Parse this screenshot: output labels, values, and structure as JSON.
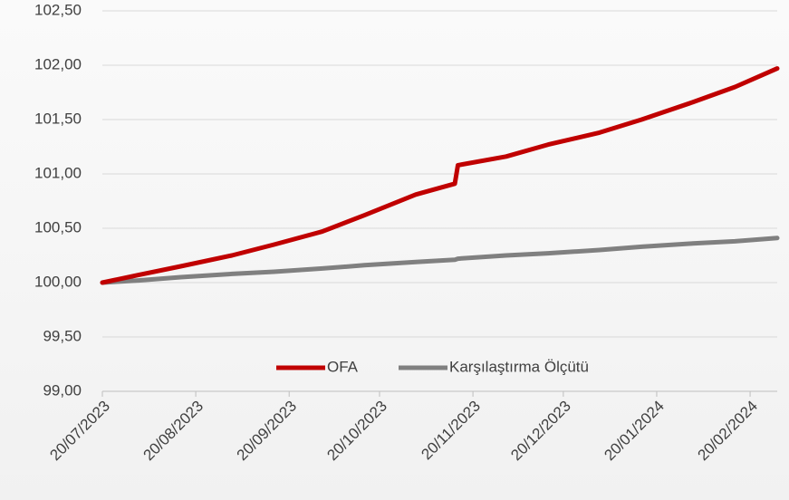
{
  "chart_data": {
    "type": "line",
    "x": [
      "20/07/2023",
      "01/08/2023",
      "15/08/2023",
      "01/09/2023",
      "15/09/2023",
      "01/10/2023",
      "15/10/2023",
      "01/11/2023",
      "14/11/2023",
      "15/11/2023",
      "01/12/2023",
      "15/12/2023",
      "01/01/2024",
      "15/01/2024",
      "01/02/2024",
      "15/02/2024",
      "29/02/2024"
    ],
    "series": [
      {
        "name": "OFA",
        "color": "#c00000",
        "values": [
          100.0,
          100.07,
          100.15,
          100.25,
          100.35,
          100.47,
          100.62,
          100.81,
          100.91,
          101.08,
          101.16,
          101.27,
          101.38,
          101.5,
          101.66,
          101.8,
          101.97
        ]
      },
      {
        "name": "Karşılaştırma Ölçütü",
        "color": "#808080",
        "values": [
          100.0,
          100.02,
          100.05,
          100.08,
          100.1,
          100.13,
          100.16,
          100.19,
          100.21,
          100.22,
          100.25,
          100.27,
          100.3,
          100.33,
          100.36,
          100.38,
          100.41
        ]
      }
    ],
    "xlim": [
      "20/07/2023",
      "29/02/2024"
    ],
    "xticks": [
      "20/07/2023",
      "20/08/2023",
      "20/09/2023",
      "20/10/2023",
      "20/11/2023",
      "20/12/2023",
      "20/01/2024",
      "20/02/2024"
    ],
    "ylim": [
      99,
      102.5
    ],
    "yticks": [
      {
        "value": 99,
        "label": "99,00"
      },
      {
        "value": 99.5,
        "label": "99,50"
      },
      {
        "value": 100,
        "label": "100,00"
      },
      {
        "value": 100.5,
        "label": "100,50"
      },
      {
        "value": 101,
        "label": "101,00"
      },
      {
        "value": 101.5,
        "label": "101,50"
      },
      {
        "value": 102,
        "label": "102,00"
      },
      {
        "value": 102.5,
        "label": "102,50"
      }
    ],
    "grid": true,
    "legend": "bottom"
  }
}
